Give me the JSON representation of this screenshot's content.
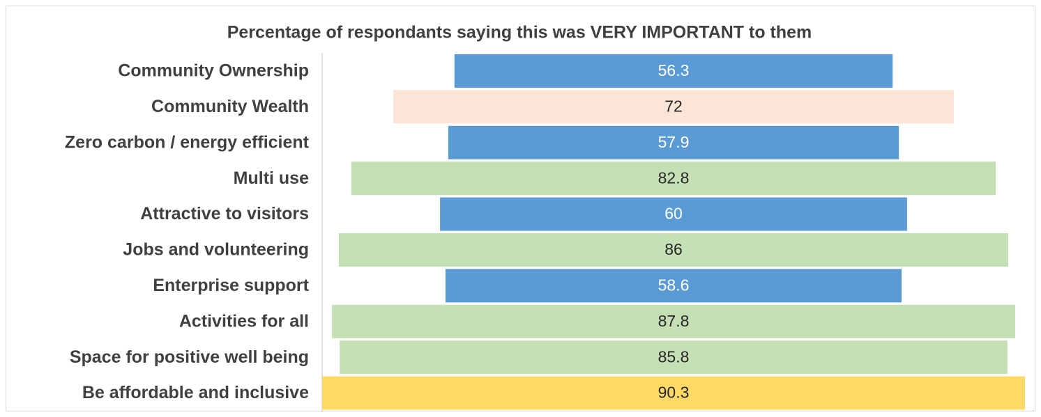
{
  "chart_data": {
    "type": "funnel",
    "title": "Percentage of respondants saying this was VERY IMPORTANT to them",
    "categories": [
      "Community Ownership",
      "Community Wealth",
      "Zero carbon / energy efficient",
      "Multi use",
      "Attractive to visitors",
      "Jobs and volunteering",
      "Enterprise support",
      "Activities for all",
      "Space for positive well being",
      "Be affordable and inclusive"
    ],
    "values": [
      56.3,
      72,
      57.9,
      82.8,
      60,
      86,
      58.6,
      87.8,
      85.8,
      90.3
    ],
    "colors": [
      "#5b9bd5",
      "#fbe5d6",
      "#5b9bd5",
      "#c5e0b4",
      "#5b9bd5",
      "#c5e0b4",
      "#5b9bd5",
      "#c5e0b4",
      "#c5e0b4",
      "#ffd966"
    ]
  }
}
